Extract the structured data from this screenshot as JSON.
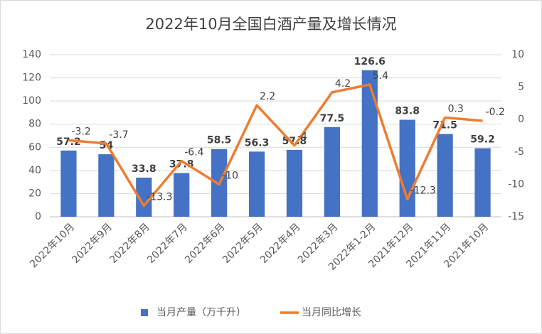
{
  "chart_data": {
    "type": "bar",
    "title": "2022年10月全国白酒产量及增长情况",
    "categories": [
      "2022年10月",
      "2022年9月",
      "2022年8月",
      "2022年7月",
      "2022年6月",
      "2022年5月",
      "2022年4月",
      "2022年3月",
      "2022年1-2月",
      "2021年12月",
      "2021年11月",
      "2021年10月"
    ],
    "series": [
      {
        "name": "当月产量（万千升）",
        "type": "bar",
        "color": "#4472c4",
        "values": [
          57.2,
          54,
          33.8,
          37.8,
          58.5,
          56.3,
          57.8,
          77.5,
          126.6,
          83.8,
          71.5,
          59.2
        ]
      },
      {
        "name": "当月同比增长",
        "type": "line",
        "axis": "y2",
        "color": "#ed7d31",
        "values": [
          -3.2,
          -3.7,
          -13.3,
          -6.4,
          -10,
          2.2,
          -4,
          4.2,
          5.4,
          -12.3,
          0.3,
          -0.2
        ]
      }
    ],
    "ylim": [
      0,
      140
    ],
    "yticks": [
      0,
      20,
      40,
      60,
      80,
      100,
      120,
      140
    ],
    "y2lim": [
      -15,
      10
    ],
    "y2ticks": [
      -15,
      -10,
      -5,
      0,
      5,
      10
    ],
    "grid": true,
    "legend": "bottom"
  }
}
